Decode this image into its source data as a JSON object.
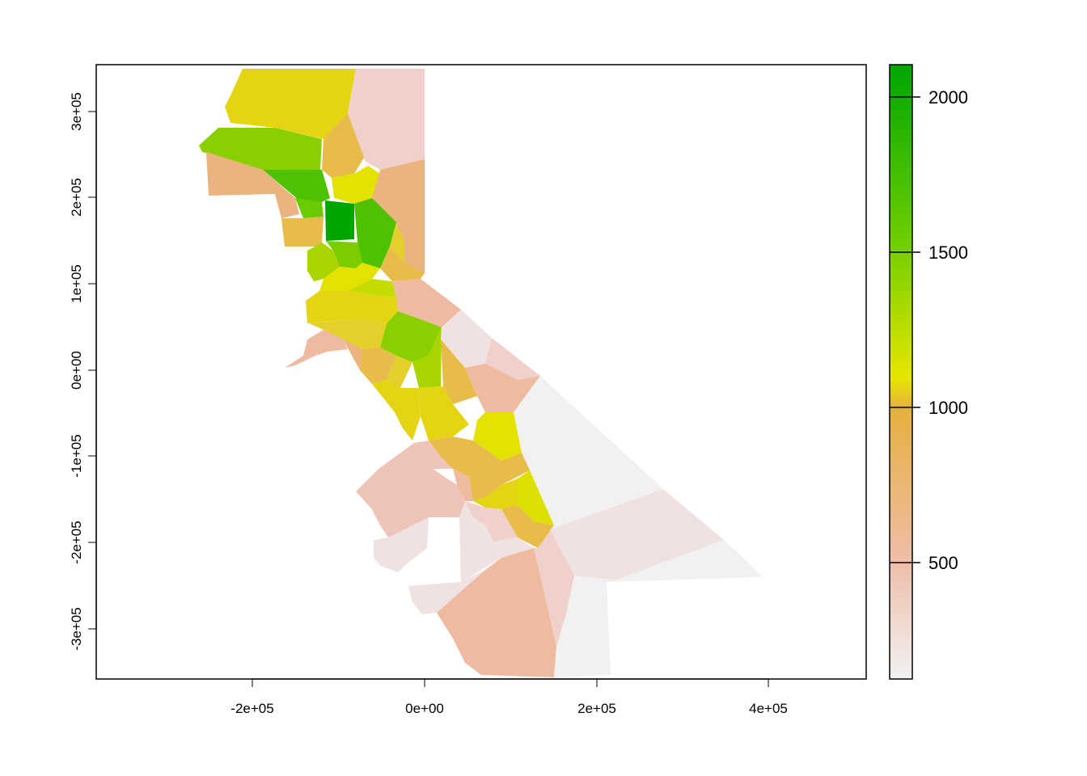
{
  "chart_data": {
    "type": "heatmap",
    "title": "",
    "xlabel": "",
    "ylabel": "",
    "xlim": [
      -380000,
      510000
    ],
    "ylim": [
      -360000,
      355000
    ],
    "x_ticks": [
      {
        "value": -200000,
        "label": "-2e+05"
      },
      {
        "value": 0,
        "label": "0e+00"
      },
      {
        "value": 200000,
        "label": "2e+05"
      },
      {
        "value": 400000,
        "label": "4e+05"
      }
    ],
    "y_ticks": [
      {
        "value": -300000,
        "label": "-3e+05"
      },
      {
        "value": -200000,
        "label": "-2e+05"
      },
      {
        "value": -100000,
        "label": "-1e+05"
      },
      {
        "value": 0,
        "label": "0e+00"
      },
      {
        "value": 100000,
        "label": "1e+05"
      },
      {
        "value": 200000,
        "label": "2e+05"
      },
      {
        "value": 300000,
        "label": "3e+05"
      }
    ],
    "legend": {
      "placement": "right",
      "range": [
        120,
        2100
      ],
      "ticks": [
        {
          "value": 500,
          "label": "500"
        },
        {
          "value": 1000,
          "label": "1000"
        },
        {
          "value": 1500,
          "label": "1500"
        },
        {
          "value": 2000,
          "label": "2000"
        }
      ],
      "colors": [
        "#F2F2F2",
        "#EEBEA9",
        "#E6B03E",
        "#E6E600",
        "#6ACD00",
        "#00A600"
      ]
    },
    "regions": [
      {
        "value": 1000,
        "color": "#E4D414"
      },
      {
        "value": 320,
        "color": "#EFD0CA"
      },
      {
        "value": 1400,
        "color": "#8AD000"
      },
      {
        "value": 700,
        "color": "#EBB47E"
      },
      {
        "value": 820,
        "color": "#E8BC4A"
      },
      {
        "value": 1750,
        "color": "#4EC200"
      },
      {
        "value": 2100,
        "color": "#00A600"
      },
      {
        "value": 1450,
        "color": "#7DCC00"
      },
      {
        "value": 950,
        "color": "#E5CF2C"
      },
      {
        "value": 1100,
        "color": "#E3E200"
      },
      {
        "value": 1250,
        "color": "#C5DC00"
      },
      {
        "value": 1550,
        "color": "#6ACB00"
      },
      {
        "value": 1550,
        "color": "#A8D500"
      },
      {
        "value": 600,
        "color": "#EEBBA0"
      },
      {
        "value": 480,
        "color": "#EFC4B8"
      },
      {
        "value": 230,
        "color": "#EFE2E0"
      },
      {
        "value": 130,
        "color": "#F1F1F1"
      },
      {
        "value": 1180,
        "color": "#DDE000"
      }
    ]
  }
}
